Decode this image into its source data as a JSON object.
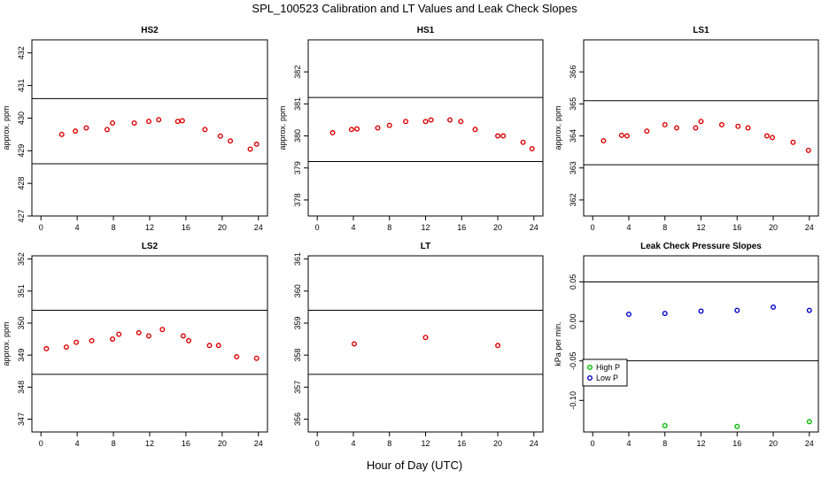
{
  "title": "SPL_100523  Calibration and LT Values and Leak Check Slopes",
  "x_title": "Hour of Day (UTC)",
  "chart_data": [
    {
      "type": "scatter",
      "title": "HS2",
      "ylabel": "approx. ppm",
      "xlim": [
        -1,
        25
      ],
      "ylim": [
        427,
        432.4
      ],
      "x_ticks": [
        0,
        4,
        8,
        12,
        16,
        20,
        24
      ],
      "y_ticks": [
        427,
        428,
        429,
        430,
        431,
        432
      ],
      "hlines": [
        428.6,
        430.6
      ],
      "series": [
        {
          "color": "#dd0000",
          "points": [
            [
              2.3,
              429.5
            ],
            [
              3.8,
              429.6
            ],
            [
              5.0,
              429.7
            ],
            [
              7.3,
              429.65
            ],
            [
              7.9,
              429.85
            ],
            [
              10.3,
              429.85
            ],
            [
              11.9,
              429.9
            ],
            [
              13.0,
              429.95
            ],
            [
              15.1,
              429.9
            ],
            [
              15.6,
              429.92
            ],
            [
              18.1,
              429.65
            ],
            [
              19.8,
              429.45
            ],
            [
              20.9,
              429.3
            ],
            [
              23.1,
              429.05
            ],
            [
              23.8,
              429.2
            ]
          ]
        }
      ]
    },
    {
      "type": "scatter",
      "title": "HS1",
      "ylabel": "approx. ppm",
      "xlim": [
        -1,
        25
      ],
      "ylim": [
        377.5,
        383
      ],
      "x_ticks": [
        0,
        4,
        8,
        12,
        16,
        20,
        24
      ],
      "y_ticks": [
        378,
        379,
        380,
        381,
        382
      ],
      "hlines": [
        379.2,
        381.2
      ],
      "series": [
        {
          "color": "#dd0000",
          "points": [
            [
              1.7,
              380.1
            ],
            [
              3.8,
              380.2
            ],
            [
              4.4,
              380.22
            ],
            [
              6.7,
              380.25
            ],
            [
              8.0,
              380.33
            ],
            [
              9.8,
              380.45
            ],
            [
              12.0,
              380.45
            ],
            [
              12.6,
              380.5
            ],
            [
              14.7,
              380.5
            ],
            [
              15.9,
              380.45
            ],
            [
              17.5,
              380.2
            ],
            [
              20.0,
              380.0
            ],
            [
              20.6,
              380.0
            ],
            [
              22.8,
              379.8
            ],
            [
              23.8,
              379.6
            ]
          ]
        }
      ]
    },
    {
      "type": "scatter",
      "title": "LS1",
      "ylabel": "approx. ppm",
      "xlim": [
        -1,
        25
      ],
      "ylim": [
        361.5,
        367
      ],
      "x_ticks": [
        0,
        4,
        8,
        12,
        16,
        20,
        24
      ],
      "y_ticks": [
        362,
        363,
        364,
        365,
        366
      ],
      "hlines": [
        363.1,
        365.1
      ],
      "series": [
        {
          "color": "#dd0000",
          "points": [
            [
              1.2,
              363.85
            ],
            [
              3.2,
              364.02
            ],
            [
              3.8,
              364.0
            ],
            [
              6.0,
              364.15
            ],
            [
              8.0,
              364.35
            ],
            [
              9.3,
              364.25
            ],
            [
              11.4,
              364.25
            ],
            [
              12.0,
              364.45
            ],
            [
              14.3,
              364.35
            ],
            [
              16.1,
              364.3
            ],
            [
              17.2,
              364.25
            ],
            [
              19.3,
              364.0
            ],
            [
              19.9,
              363.95
            ],
            [
              22.2,
              363.8
            ],
            [
              23.9,
              363.55
            ]
          ]
        }
      ]
    },
    {
      "type": "scatter",
      "title": "LS2",
      "ylabel": "approx. ppm",
      "xlim": [
        -1,
        25
      ],
      "ylim": [
        346.6,
        352.1
      ],
      "x_ticks": [
        0,
        4,
        8,
        12,
        16,
        20,
        24
      ],
      "y_ticks": [
        347,
        348,
        349,
        350,
        351,
        352
      ],
      "hlines": [
        348.4,
        350.4
      ],
      "series": [
        {
          "color": "#dd0000",
          "points": [
            [
              0.6,
              349.2
            ],
            [
              2.8,
              349.25
            ],
            [
              3.9,
              349.4
            ],
            [
              5.6,
              349.45
            ],
            [
              7.9,
              349.5
            ],
            [
              8.6,
              349.65
            ],
            [
              10.8,
              349.7
            ],
            [
              11.9,
              349.6
            ],
            [
              13.4,
              349.8
            ],
            [
              15.7,
              349.6
            ],
            [
              16.3,
              349.45
            ],
            [
              18.6,
              349.3
            ],
            [
              19.6,
              349.3
            ],
            [
              21.6,
              348.95
            ],
            [
              23.8,
              348.9
            ]
          ]
        }
      ]
    },
    {
      "type": "scatter",
      "title": "LT",
      "ylabel": "",
      "xlim": [
        -1,
        25
      ],
      "ylim": [
        355.6,
        361.1
      ],
      "x_ticks": [
        0,
        4,
        8,
        12,
        16,
        20,
        24
      ],
      "y_ticks": [
        356,
        357,
        358,
        359,
        360,
        361
      ],
      "hlines": [
        357.4,
        359.4
      ],
      "series": [
        {
          "color": "#dd0000",
          "points": [
            [
              4.1,
              358.35
            ],
            [
              12.0,
              358.55
            ],
            [
              20.0,
              358.3
            ]
          ]
        }
      ]
    },
    {
      "type": "scatter",
      "title": "Leak Check Pressure Slopes",
      "ylabel": "kPa per min.",
      "xlim": [
        -1,
        25
      ],
      "ylim": [
        -0.14,
        0.083
      ],
      "x_ticks": [
        0,
        4,
        8,
        12,
        16,
        20,
        24
      ],
      "y_ticks": [
        -0.1,
        -0.05,
        0.0,
        0.05
      ],
      "y_tick_labels": [
        "-0.10",
        "-0.05",
        "0.00",
        "0.05"
      ],
      "hlines": [
        -0.05,
        0.05
      ],
      "legend": {
        "position": "left",
        "entries": [
          {
            "label": "High P",
            "color": "#00bb00"
          },
          {
            "label": "Low P",
            "color": "#0000cc"
          }
        ]
      },
      "series": [
        {
          "name": "High P",
          "color": "#00bb00",
          "points": [
            [
              8.0,
              -0.132
            ],
            [
              16.0,
              -0.133
            ],
            [
              24.0,
              -0.127
            ]
          ]
        },
        {
          "name": "Low P",
          "color": "#0000cc",
          "points": [
            [
              4.0,
              0.009
            ],
            [
              8.0,
              0.01
            ],
            [
              12.0,
              0.013
            ],
            [
              16.0,
              0.014
            ],
            [
              20.0,
              0.018
            ],
            [
              24.0,
              0.014
            ]
          ]
        }
      ]
    }
  ]
}
